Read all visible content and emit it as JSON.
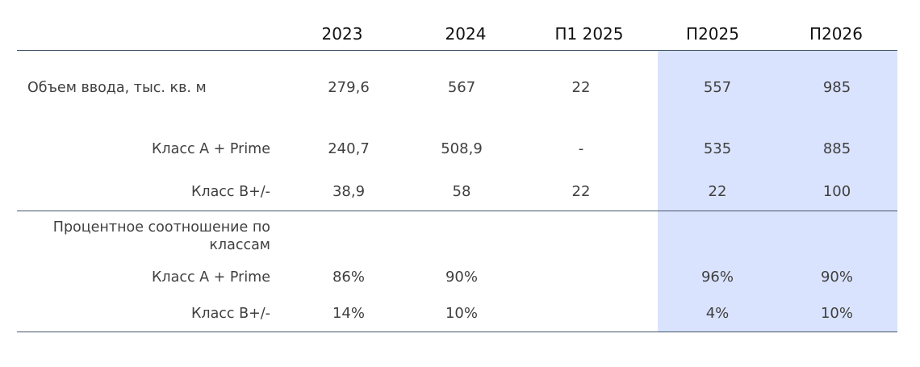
{
  "chart_data": {
    "type": "table",
    "columns": [
      "2023",
      "2024",
      "П1 2025",
      "П2025",
      "П2026"
    ],
    "highlight_columns": [
      "П2025",
      "П2026"
    ],
    "highlight_color": "#dae3fd",
    "rule_color": "#44546a",
    "rows": [
      {
        "label": "Объем ввода, тыс. кв. м",
        "values": [
          "279,6",
          "567",
          "22",
          "557",
          "985"
        ]
      },
      {
        "label": "Класс A + Prime",
        "values": [
          "240,7",
          "508,9",
          "-",
          "535",
          "885"
        ]
      },
      {
        "label": "Класс B+/-",
        "values": [
          "38,9",
          "58",
          "22",
          "22",
          "100"
        ]
      },
      {
        "label": "Процентное соотношение по классам",
        "values": [
          "",
          "",
          "",
          "",
          ""
        ]
      },
      {
        "label": "Класс A + Prime",
        "values": [
          "86%",
          "90%",
          "",
          "96%",
          "90%"
        ]
      },
      {
        "label": "Класс B+/-",
        "values": [
          "14%",
          "10%",
          "",
          "4%",
          "10%"
        ]
      }
    ]
  }
}
